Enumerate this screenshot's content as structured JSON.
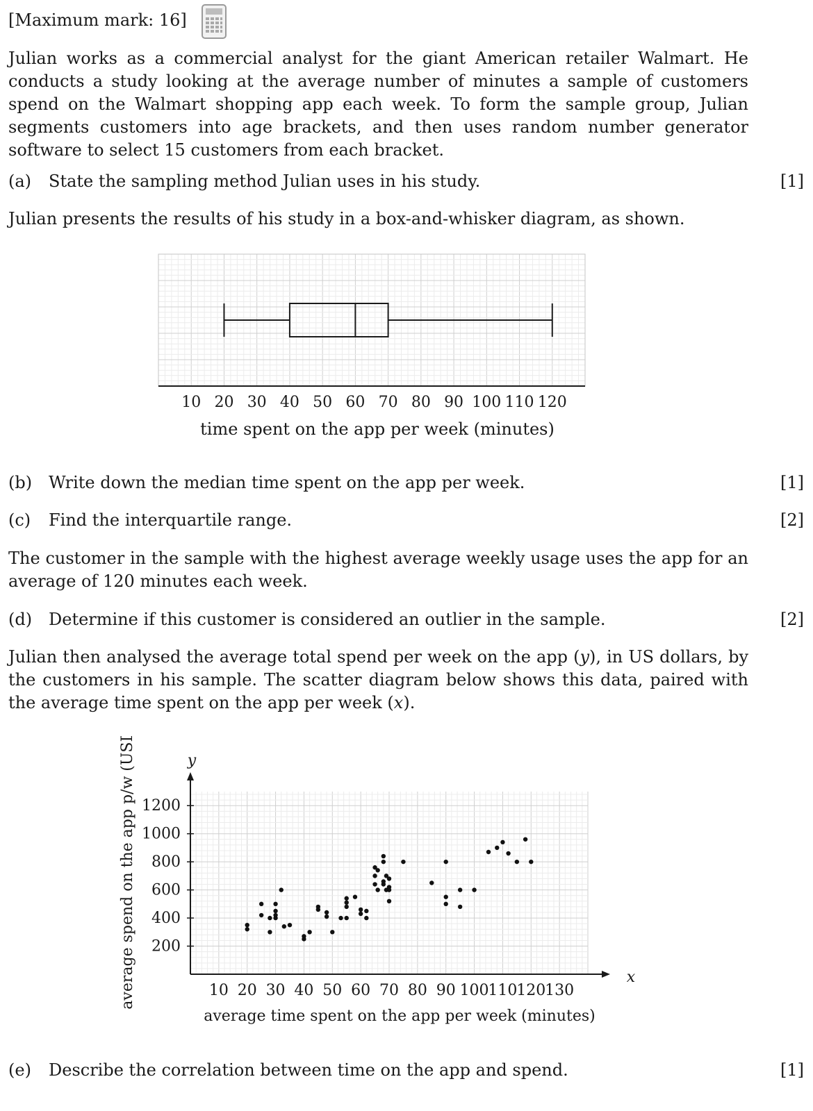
{
  "header": {
    "max_mark": "[Maximum mark: 16]",
    "calculator_icon": "calculator-icon"
  },
  "intro": "Julian works as a commercial analyst for the giant American retailer Walmart. He conducts a study looking at the average number of minutes a sample of customers spend on the Walmart shopping app each week. To form the sample group, Julian segments customers into age brackets, and then uses random number generator software to select 15 customers from each bracket.",
  "parts": {
    "a": {
      "label": "(a)",
      "text": "State the sampling method Julian uses in his study.",
      "mark": "[1]"
    },
    "b": {
      "label": "(b)",
      "text": "Write down the median time spent on the app per week.",
      "mark": "[1]"
    },
    "c": {
      "label": "(c)",
      "text": "Find the interquartile range.",
      "mark": "[2]"
    },
    "d": {
      "label": "(d)",
      "text": "Determine if this customer is considered an outlier in the sample.",
      "mark": "[2]"
    },
    "e": {
      "label": "(e)",
      "text": "Describe the correlation between time on the app and spend.",
      "mark": "[1]"
    }
  },
  "box_intro": "Julian presents the results of his study in a box-and-whisker diagram, as shown.",
  "outlier_intro": "The customer in the sample with the highest average weekly usage uses the app for an average of 120 minutes each week.",
  "scatter_intro_1": "Julian then analysed the average total spend per week on the app (",
  "scatter_intro_y": "y",
  "scatter_intro_2": "), in US dollars, by the customers in his sample. The scatter diagram below shows this data, paired with the average time spent on the app per week (",
  "scatter_intro_x": "x",
  "scatter_intro_3": ").",
  "chart_data": [
    {
      "type": "box",
      "min": 20,
      "q1": 40,
      "median": 60,
      "q3": 70,
      "max": 120,
      "xlim": [
        0,
        130
      ],
      "ticks": [
        10,
        20,
        30,
        40,
        50,
        60,
        70,
        80,
        90,
        100,
        110,
        120
      ],
      "xlabel": "time spent on the app per week (minutes)",
      "grid": true
    },
    {
      "type": "scatter",
      "xlabel": "average time spent on the app per week (minutes)",
      "ylabel": "average spend on the app p/w (USD)",
      "x_axis_symbol": "x",
      "y_axis_symbol": "y",
      "xlim": [
        0,
        140
      ],
      "ylim": [
        0,
        1300
      ],
      "xticks": [
        10,
        20,
        30,
        40,
        50,
        60,
        70,
        80,
        90,
        100,
        110,
        120,
        130
      ],
      "yticks": [
        200,
        400,
        600,
        800,
        1000,
        1200
      ],
      "grid": true,
      "points": [
        [
          20,
          350
        ],
        [
          20,
          320
        ],
        [
          25,
          500
        ],
        [
          25,
          420
        ],
        [
          28,
          400
        ],
        [
          28,
          300
        ],
        [
          30,
          500
        ],
        [
          30,
          450
        ],
        [
          30,
          420
        ],
        [
          30,
          400
        ],
        [
          32,
          600
        ],
        [
          33,
          340
        ],
        [
          35,
          350
        ],
        [
          40,
          270
        ],
        [
          40,
          250
        ],
        [
          42,
          300
        ],
        [
          45,
          480
        ],
        [
          45,
          460
        ],
        [
          48,
          440
        ],
        [
          48,
          410
        ],
        [
          50,
          300
        ],
        [
          53,
          400
        ],
        [
          55,
          540
        ],
        [
          55,
          510
        ],
        [
          55,
          480
        ],
        [
          55,
          400
        ],
        [
          58,
          550
        ],
        [
          60,
          460
        ],
        [
          60,
          430
        ],
        [
          62,
          450
        ],
        [
          62,
          400
        ],
        [
          65,
          760
        ],
        [
          65,
          700
        ],
        [
          65,
          640
        ],
        [
          66,
          740
        ],
        [
          66,
          600
        ],
        [
          68,
          840
        ],
        [
          68,
          800
        ],
        [
          68,
          660
        ],
        [
          68,
          640
        ],
        [
          69,
          700
        ],
        [
          69,
          600
        ],
        [
          70,
          680
        ],
        [
          70,
          620
        ],
        [
          70,
          600
        ],
        [
          70,
          520
        ],
        [
          75,
          800
        ],
        [
          85,
          650
        ],
        [
          90,
          800
        ],
        [
          90,
          550
        ],
        [
          90,
          500
        ],
        [
          95,
          600
        ],
        [
          95,
          480
        ],
        [
          100,
          600
        ],
        [
          105,
          870
        ],
        [
          108,
          900
        ],
        [
          110,
          940
        ],
        [
          112,
          860
        ],
        [
          115,
          800
        ],
        [
          118,
          960
        ],
        [
          120,
          800
        ]
      ]
    }
  ]
}
